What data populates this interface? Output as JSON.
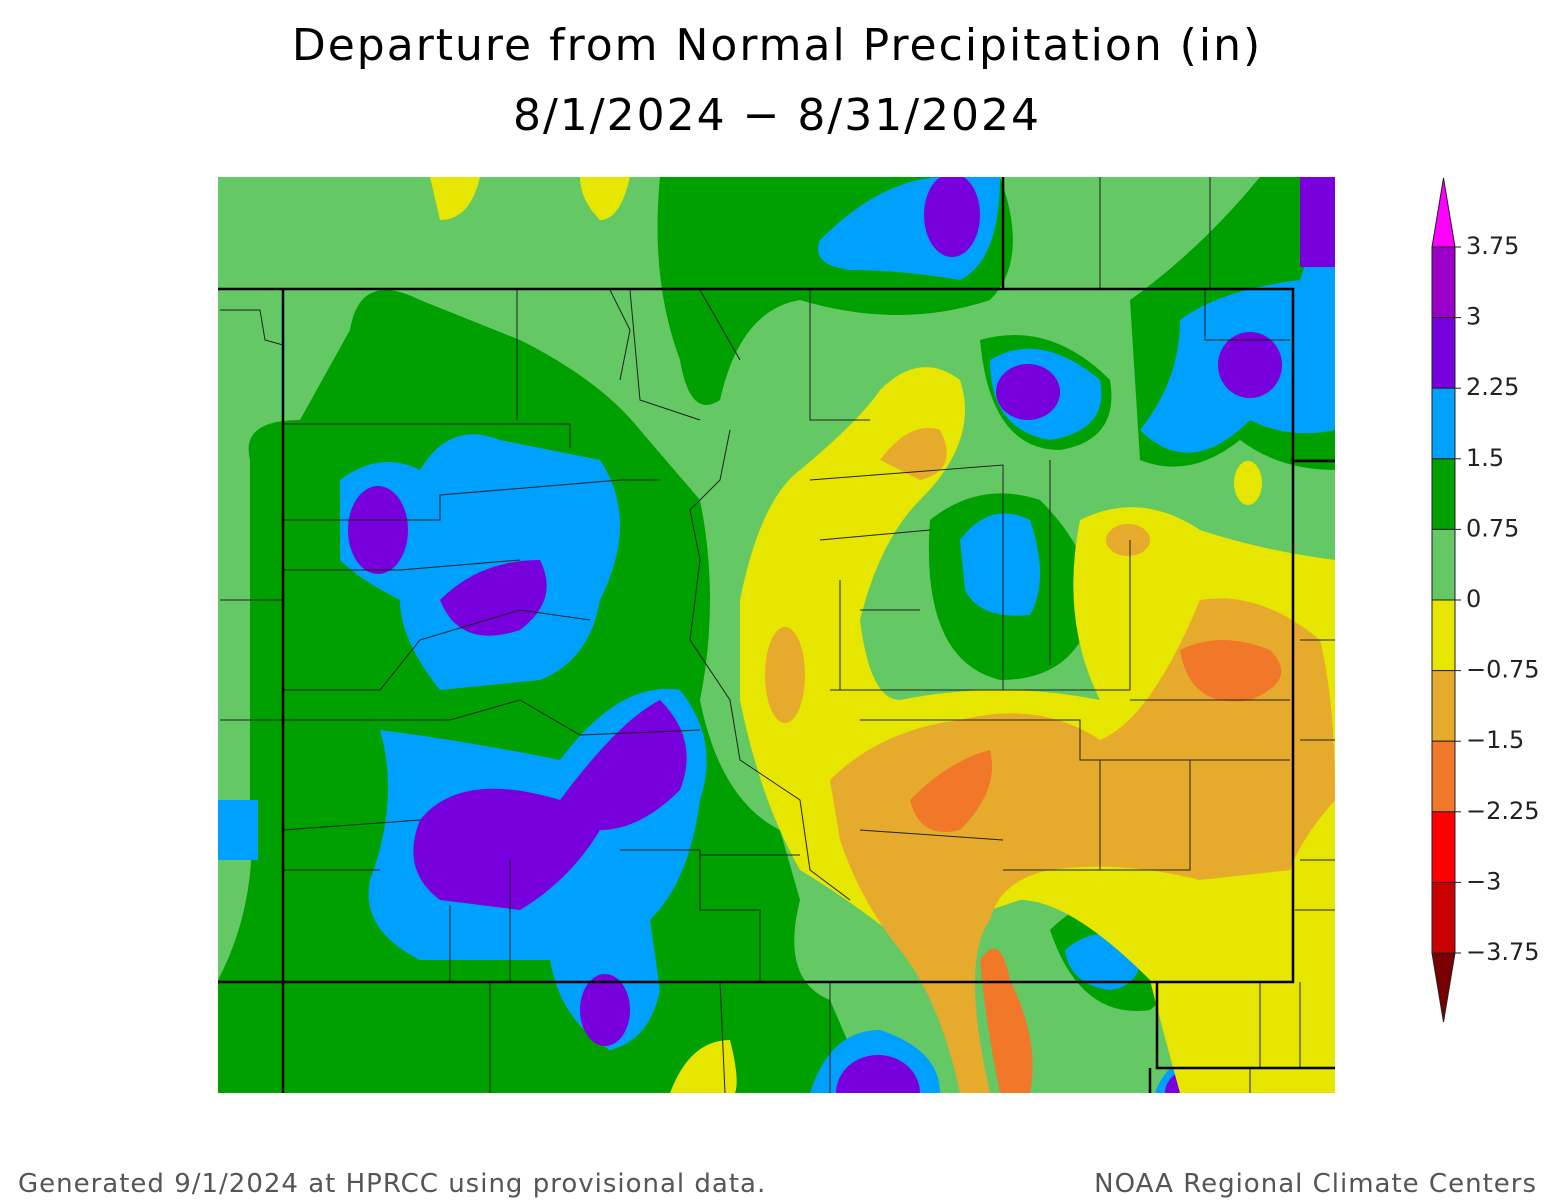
{
  "title": "Departure from Normal Precipitation (in)",
  "subtitle": "8/1/2024 − 8/31/2024",
  "legend": {
    "ticks": [
      3.75,
      3,
      2.25,
      1.5,
      0.75,
      0,
      {
        "value": -0.75,
        "label": "−0.75"
      },
      {
        "value": -1.5,
        "label": "−1.5"
      },
      {
        "value": -2.25,
        "label": "−2.25"
      },
      {
        "value": -3,
        "label": "−3"
      },
      {
        "value": -3.75,
        "label": "−3.75"
      }
    ],
    "colors": [
      "#9a00c8",
      "#7800dc",
      "#00a0ff",
      "#00a000",
      "#64c864",
      "#e6e600",
      "#e6aa2c",
      "#f07828",
      "#ff0000",
      "#c80000"
    ],
    "over_color": "#ff00ff",
    "under_color": "#780000"
  },
  "footer": {
    "left": "Generated 9/1/2024 at HPRCC using provisional data.",
    "right": "NOAA Regional Climate Centers"
  }
}
